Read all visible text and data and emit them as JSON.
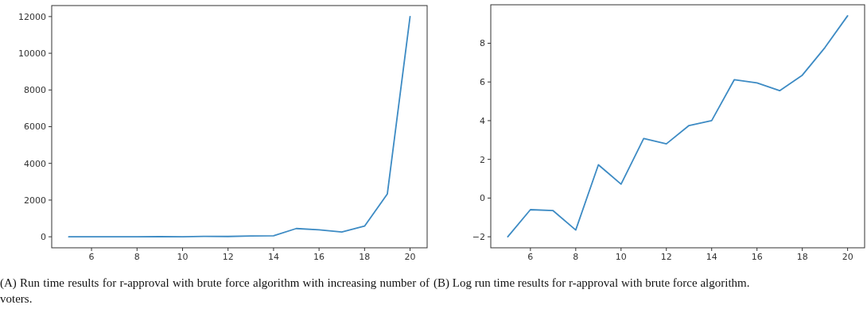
{
  "chart_data": [
    {
      "type": "line",
      "x": [
        5,
        6,
        7,
        8,
        9,
        10,
        11,
        12,
        13,
        14,
        15,
        16,
        17,
        18,
        19,
        20
      ],
      "values": [
        0,
        1,
        1,
        0,
        6,
        2,
        22,
        16,
        42,
        55,
        450,
        380,
        260,
        580,
        2330,
        12000
      ],
      "color": "#3d8bc4",
      "xlim": [
        4.25,
        20.75
      ],
      "ylim": [
        -600,
        12600
      ],
      "xticks": [
        6,
        8,
        10,
        12,
        14,
        16,
        18,
        20
      ],
      "yticks": [
        0,
        2000,
        4000,
        6000,
        8000,
        10000,
        12000
      ],
      "annotations": [
        "(A) Run time results for r-approval with brute force algorithm with increasing number of voters."
      ]
    },
    {
      "type": "line",
      "x": [
        5,
        6,
        7,
        8,
        9,
        10,
        11,
        12,
        13,
        14,
        15,
        16,
        17,
        18,
        19,
        20
      ],
      "values": [
        -2.0,
        -0.6,
        -0.65,
        -1.65,
        1.72,
        0.72,
        3.08,
        2.8,
        3.75,
        4.0,
        6.12,
        5.95,
        5.55,
        6.35,
        7.78,
        9.42
      ],
      "color": "#3d8bc4",
      "xlim": [
        4.25,
        20.75
      ],
      "ylim": [
        -2.57,
        9.99
      ],
      "xticks": [
        6,
        8,
        10,
        12,
        14,
        16,
        18,
        20
      ],
      "yticks": [
        {
          "value": -2,
          "label": "−2"
        },
        0,
        2,
        4,
        6,
        8
      ],
      "annotations": [
        "(B) Log run time results for r-approval with brute force algorithm."
      ]
    }
  ]
}
